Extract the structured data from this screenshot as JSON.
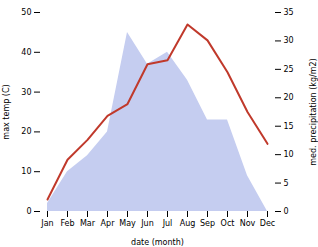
{
  "chart_data": {
    "type": "line",
    "xlabel": "date (month)",
    "ylabel": "max temp (C)",
    "y2label": "med. precipitation (kg/m2)",
    "categories": [
      "Jan",
      "Feb",
      "Mar",
      "Apr",
      "May",
      "Jun",
      "Jul",
      "Aug",
      "Sep",
      "Oct",
      "Nov",
      "Dec"
    ],
    "series": [
      {
        "type": "area",
        "color": "#c5cdf0",
        "values": [
          2,
          10,
          14,
          20,
          45,
          37,
          40,
          33,
          23,
          23,
          9,
          0
        ]
      },
      {
        "type": "line",
        "color": "#c0392b",
        "values": [
          3,
          13,
          18,
          24,
          27,
          37,
          38,
          47,
          43,
          35,
          25,
          17
        ]
      }
    ],
    "ylim": [
      0,
      50
    ],
    "yticks": [
      0,
      10,
      20,
      30,
      40,
      50
    ],
    "y2lim": [
      0,
      35
    ],
    "y2ticks": [
      0,
      5,
      10,
      15,
      20,
      25,
      30,
      35
    ]
  }
}
